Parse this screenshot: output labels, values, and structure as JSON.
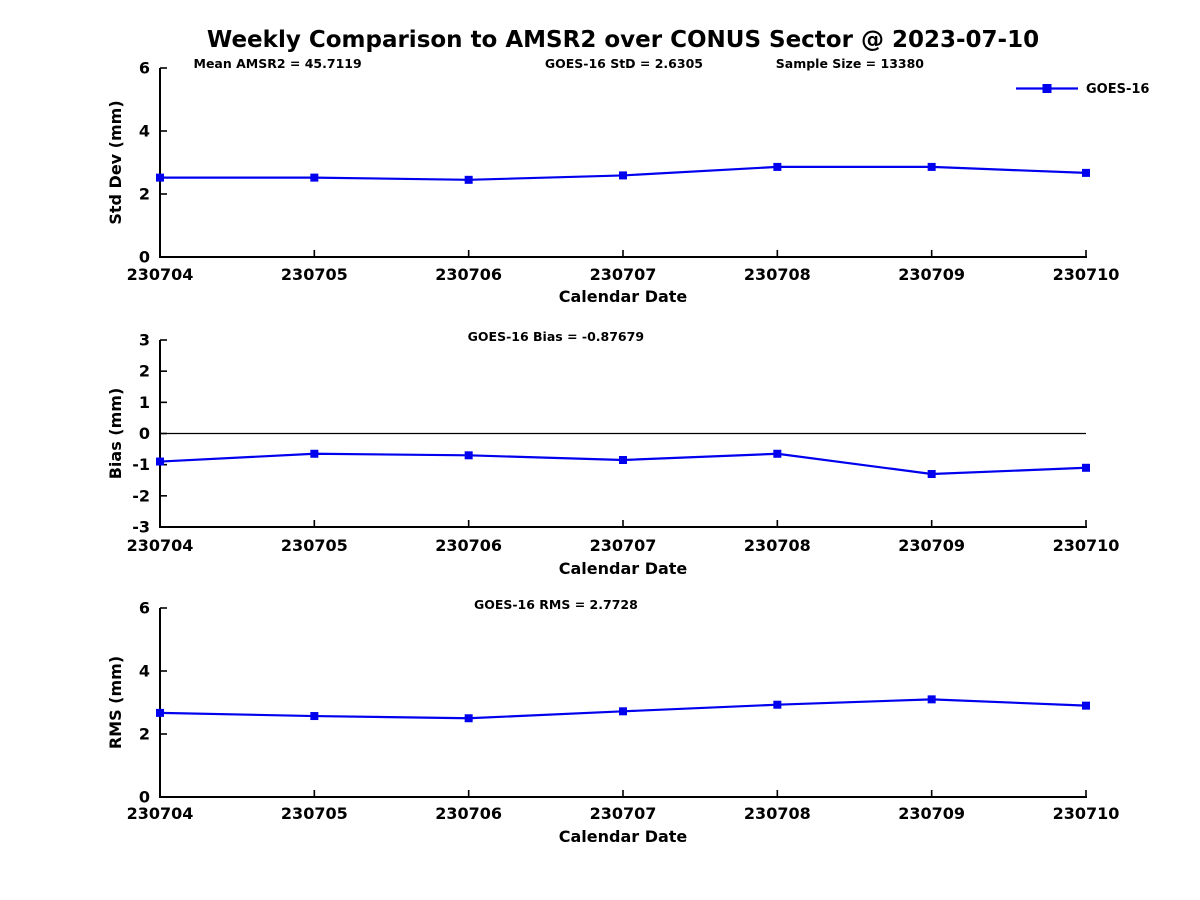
{
  "title": "Weekly Comparison to AMSR2 over CONUS Sector @ 2023-07-10",
  "colors": {
    "series_line": "#0000EE",
    "axis": "#000000",
    "zero_line": "#000000"
  },
  "legend": {
    "label": "GOES-16"
  },
  "chart_data": [
    {
      "type": "line",
      "name": "std-dev",
      "title": "",
      "xlabel": "Calendar Date",
      "ylabel": "Std Dev (mm)",
      "ylim": [
        0,
        6
      ],
      "yticks": [
        0,
        2,
        4,
        6
      ],
      "categories": [
        "230704",
        "230705",
        "230706",
        "230707",
        "230708",
        "230709",
        "230710"
      ],
      "series": [
        {
          "name": "GOES-16",
          "values": [
            2.52,
            2.52,
            2.45,
            2.59,
            2.86,
            2.86,
            2.67
          ]
        }
      ],
      "annotations": [
        "Mean AMSR2 = 45.7119",
        "GOES-16 StD = 2.6305",
        "Sample Size = 13380"
      ],
      "zero_line": false,
      "show_legend": true,
      "legend_position": "top-right",
      "grid": false,
      "marker": "square"
    },
    {
      "type": "line",
      "name": "bias",
      "title": "",
      "xlabel": "Calendar Date",
      "ylabel": "Bias (mm)",
      "ylim": [
        -3,
        3
      ],
      "yticks": [
        -3,
        -2,
        -1,
        0,
        1,
        2,
        3
      ],
      "categories": [
        "230704",
        "230705",
        "230706",
        "230707",
        "230708",
        "230709",
        "230710"
      ],
      "series": [
        {
          "name": "GOES-16",
          "values": [
            -0.9,
            -0.65,
            -0.7,
            -0.85,
            -0.65,
            -1.3,
            -1.1
          ]
        }
      ],
      "annotations": [
        "GOES-16 Bias  = -0.87679"
      ],
      "zero_line": true,
      "show_legend": false,
      "grid": false,
      "marker": "square"
    },
    {
      "type": "line",
      "name": "rms",
      "title": "",
      "xlabel": "Calendar Date",
      "ylabel": "RMS (mm)",
      "ylim": [
        0,
        6
      ],
      "yticks": [
        0,
        2,
        4,
        6
      ],
      "categories": [
        "230704",
        "230705",
        "230706",
        "230707",
        "230708",
        "230709",
        "230710"
      ],
      "series": [
        {
          "name": "GOES-16",
          "values": [
            2.67,
            2.57,
            2.5,
            2.72,
            2.93,
            3.1,
            2.9
          ]
        }
      ],
      "annotations": [
        "GOES-16 RMS = 2.7728"
      ],
      "zero_line": false,
      "show_legend": false,
      "grid": false,
      "marker": "square"
    }
  ]
}
